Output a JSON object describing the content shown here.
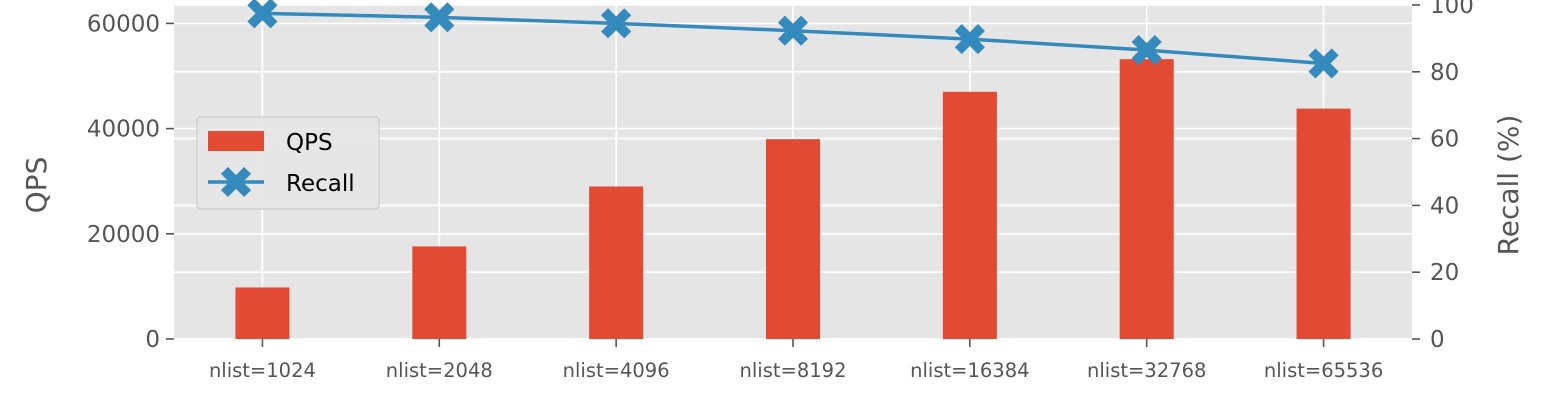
{
  "chart_data": {
    "type": "bar",
    "categories": [
      "nlist=1024",
      "nlist=2048",
      "nlist=4096",
      "nlist=8192",
      "nlist=16384",
      "nlist=32768",
      "nlist=65536"
    ],
    "series": [
      {
        "name": "QPS",
        "type": "bar",
        "axis": "left",
        "color": "#E24A33",
        "values": [
          9800,
          17600,
          29000,
          38000,
          47000,
          53200,
          43800
        ]
      },
      {
        "name": "Recall",
        "type": "line",
        "axis": "right",
        "color": "#348ABD",
        "marker": "X",
        "values": [
          97.5,
          96.3,
          94.5,
          92.3,
          89.8,
          86.5,
          82.5
        ]
      }
    ],
    "ylabel": "QPS",
    "ylim": [
      0,
      63500
    ],
    "yticks": [
      0,
      20000,
      40000,
      60000
    ],
    "y2label": "Recall (%)",
    "y2lim": [
      0,
      100
    ],
    "y2ticks": [
      0,
      20,
      40,
      60,
      80,
      100
    ],
    "grid": true,
    "legend": "center-left",
    "style": "ggplot",
    "background_color": "#E5E5E5"
  }
}
